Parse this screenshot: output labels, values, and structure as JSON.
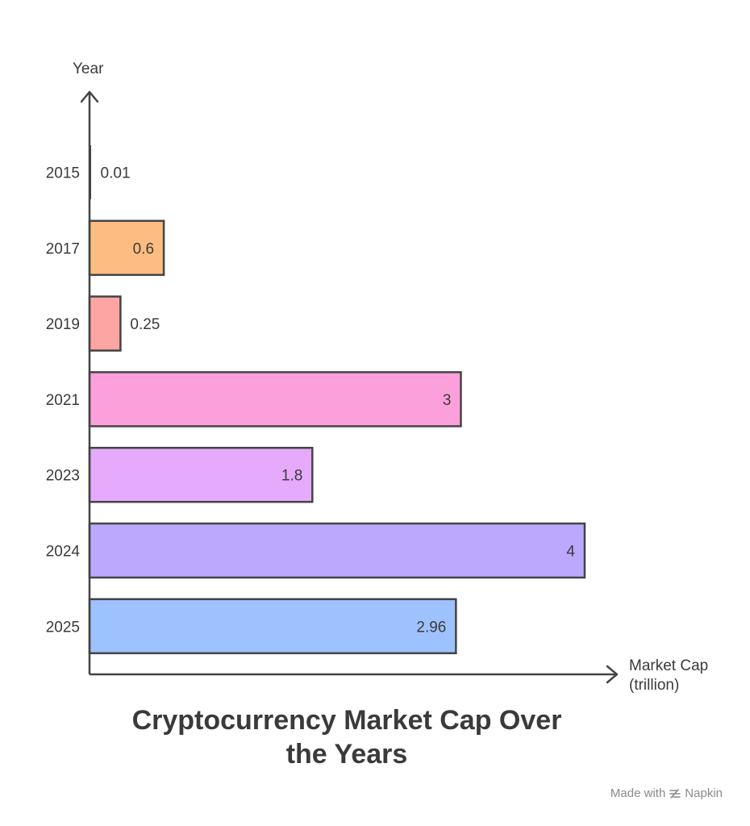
{
  "chart_data": {
    "type": "bar",
    "orientation": "horizontal",
    "title": "Cryptocurrency Market Cap Over the Years",
    "title_lines": [
      "Cryptocurrency Market Cap Over",
      "the Years"
    ],
    "xlabel_lines": [
      "Market Cap",
      "(trillion)"
    ],
    "ylabel": "Year",
    "categories": [
      "2015",
      "2017",
      "2019",
      "2021",
      "2023",
      "2024",
      "2025"
    ],
    "values": [
      0.01,
      0.6,
      0.25,
      3,
      1.8,
      4,
      2.96
    ],
    "value_labels": [
      "0.01",
      "0.6",
      "0.25",
      "3",
      "1.8",
      "4",
      "2.96"
    ],
    "colors": [
      "#555555",
      "#FDBD82",
      "#FDA5A2",
      "#FCA0DB",
      "#E5AAFC",
      "#BCA9FD",
      "#9DC2FD"
    ],
    "xlim": [
      0,
      4
    ],
    "grid": false
  },
  "watermark": {
    "prefix": "Made with",
    "brand": "Napkin"
  }
}
